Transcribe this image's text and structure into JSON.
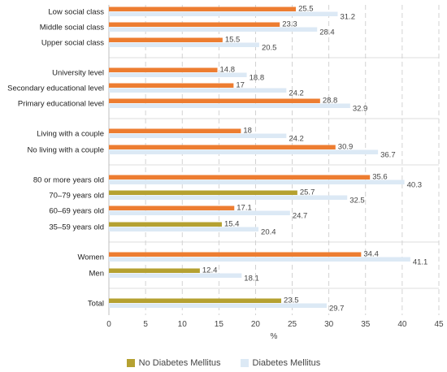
{
  "chart_data": {
    "type": "bar",
    "orientation": "horizontal",
    "categories": [
      "Low social class",
      "Middle social class",
      "Upper social class",
      "University level",
      "Secondary educational level",
      "Primary educational level",
      "Living with a couple",
      "No living with a couple",
      "80 or more years old",
      "70–79 years old",
      "60–69 years old",
      "35–59 years old",
      "Women",
      "Men",
      "Total"
    ],
    "groups": [
      [
        0,
        1,
        2
      ],
      [
        3,
        4,
        5
      ],
      [
        6,
        7
      ],
      [
        8,
        9,
        10,
        11
      ],
      [
        12,
        13
      ],
      [
        14
      ]
    ],
    "series": [
      {
        "name": "No Diabetes Mellitus",
        "values": [
          25.5,
          23.3,
          15.5,
          14.8,
          17,
          28.8,
          18,
          30.9,
          35.6,
          25.7,
          17.1,
          15.4,
          34.4,
          12.4,
          23.5
        ],
        "colors": [
          "#ed7d31",
          "#ed7d31",
          "#ed7d31",
          "#ed7d31",
          "#ed7d31",
          "#ed7d31",
          "#ed7d31",
          "#ed7d31",
          "#ed7d31",
          "#b5a131",
          "#ed7d31",
          "#b5a131",
          "#ed7d31",
          "#b5a131",
          "#b5a131"
        ]
      },
      {
        "name": "Diabetes Mellitus",
        "values": [
          31.2,
          28.4,
          20.5,
          18.8,
          24.2,
          32.9,
          24.2,
          36.7,
          40.3,
          32.5,
          24.7,
          20.4,
          41.1,
          18.1,
          29.7
        ],
        "color": "#dce9f5"
      }
    ],
    "xlabel": "%",
    "xlim": [
      0,
      45
    ],
    "xticks": [
      0,
      5,
      10,
      15,
      20,
      25,
      30,
      35,
      40,
      45
    ],
    "grid": "vertical dashed",
    "legend": {
      "placement": "bottom",
      "items": [
        {
          "label": "No Diabetes Mellitus",
          "color": "#b5a131"
        },
        {
          "label": "Diabetes Mellitus",
          "color": "#dce9f5"
        }
      ]
    }
  }
}
